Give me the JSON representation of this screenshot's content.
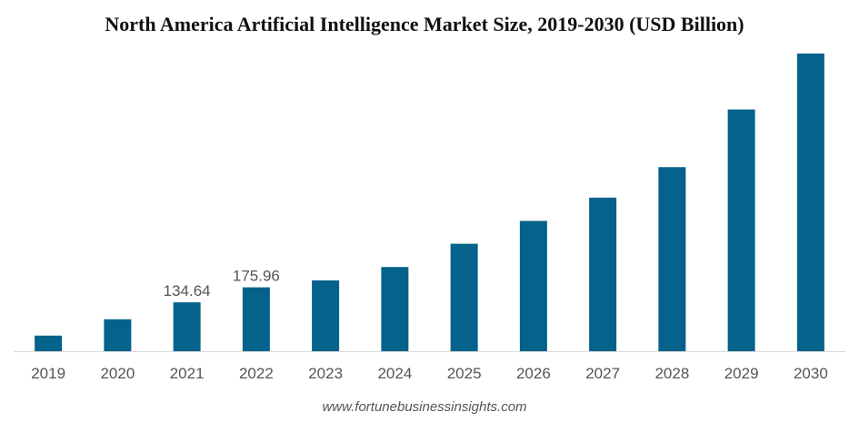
{
  "chart_data": {
    "type": "bar",
    "title": "North America Artificial Intelligence Market Size, 2019-2030 (USD Billion)",
    "categories": [
      "2019",
      "2020",
      "2021",
      "2022",
      "2023",
      "2024",
      "2025",
      "2026",
      "2027",
      "2028",
      "2029",
      "2030"
    ],
    "values": [
      43,
      88,
      134.64,
      175.96,
      195,
      232,
      296,
      359,
      423,
      507,
      666,
      820
    ],
    "data_labels": [
      "",
      "",
      "134.64",
      "175.96",
      "",
      "",
      "",
      "",
      "",
      "",
      "",
      ""
    ],
    "xlabel": "",
    "ylabel": "",
    "ylim": [
      0,
      820
    ],
    "grid": false,
    "bar_color": "#05628a",
    "axis_color": "#d9d9d9"
  },
  "source": "www.fortunebusinessinsights.com"
}
